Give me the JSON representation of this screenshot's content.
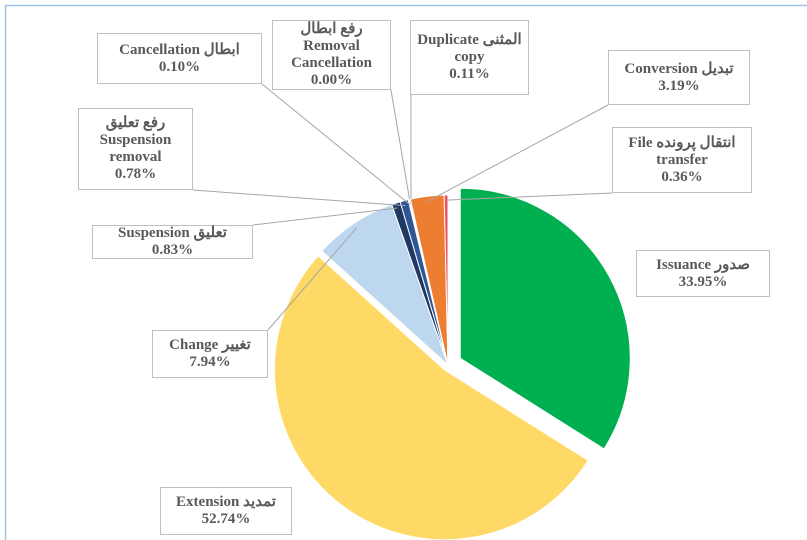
{
  "chart_data": {
    "type": "pie",
    "categories": [
      "صدور Issuance",
      "تمدید Extension",
      "تغییر Change",
      "تعلیق Suspension",
      "رفع تعلیق\nSuspension\nremoval",
      "ابطال Cancellation",
      "رفع ابطال  Removal\nCancellation",
      "المثنی  Duplicate\ncopy",
      "تبدیل Conversion",
      "انتقال پرونده  File\ntransfer"
    ],
    "values": [
      33.95,
      52.74,
      7.94,
      0.83,
      0.78,
      0.1,
      0.0,
      0.11,
      3.19,
      0.36
    ],
    "value_labels": [
      "33.95%",
      "52.74%",
      "7.94%",
      "0.83%",
      "0.78%",
      "0.10%",
      "0.00%",
      "0.11%",
      "3.19%",
      "0.36%"
    ],
    "colors": [
      "#00b050",
      "#ffd966",
      "#bdd7ee",
      "#1f3864",
      "#2f5597",
      "#9dc3e6",
      "#a5a5a5",
      "#00b0f0",
      "#ed7d31",
      "#e8505b"
    ]
  }
}
